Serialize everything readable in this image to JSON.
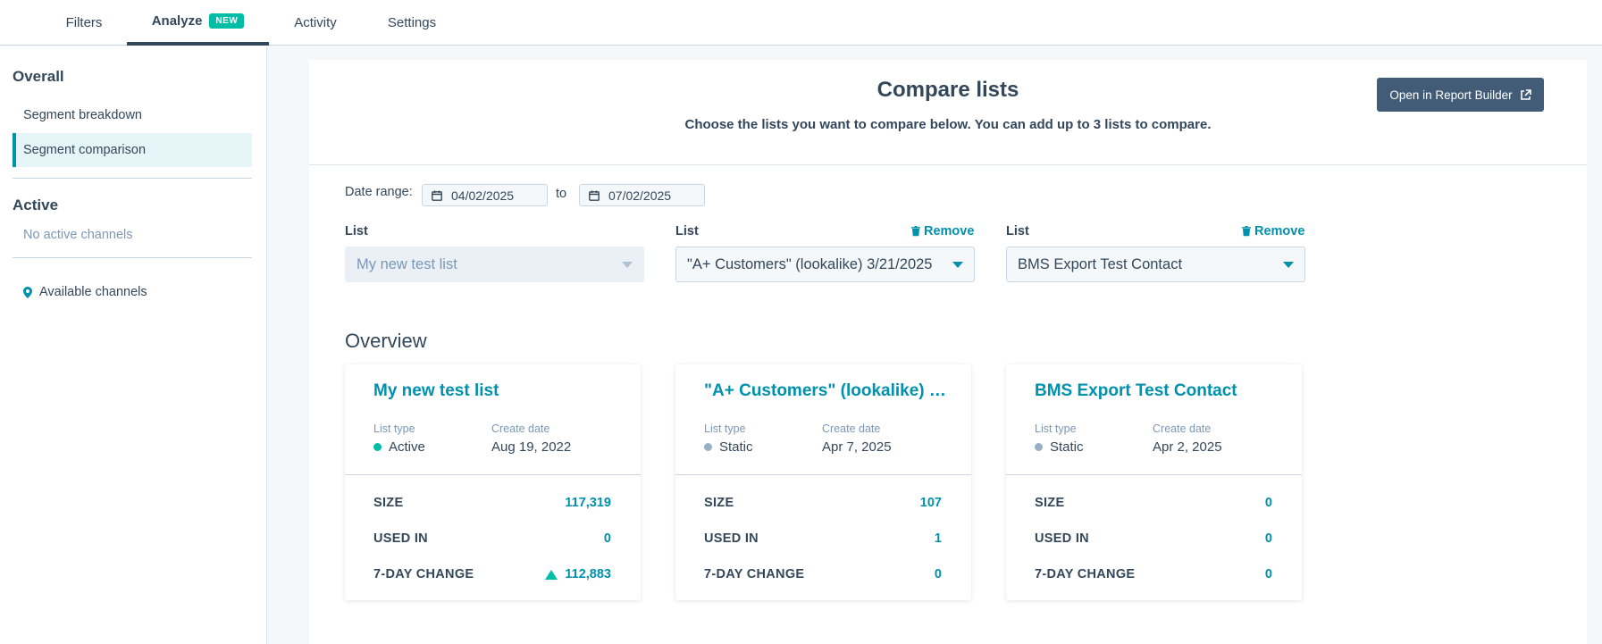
{
  "tabs": [
    {
      "label": "Filters"
    },
    {
      "label": "Analyze",
      "badge": "NEW"
    },
    {
      "label": "Activity"
    },
    {
      "label": "Settings"
    }
  ],
  "sidebar": {
    "overall_heading": "Overall",
    "items": [
      {
        "label": "Segment breakdown"
      },
      {
        "label": "Segment comparison"
      }
    ],
    "active_heading": "Active",
    "no_active": "No active channels",
    "available_link": "Available channels"
  },
  "main": {
    "title": "Compare lists",
    "subtitle": "Choose the lists you want to compare below. You can add up to 3 lists to compare.",
    "report_button": "Open in Report Builder",
    "date_range_label": "Date range:",
    "date_from": "04/02/2025",
    "date_to_label": "to",
    "date_to": "07/02/2025",
    "list_label": "List",
    "remove_label": "Remove",
    "selectors": [
      {
        "value": "My new test list"
      },
      {
        "value": "\"A+ Customers\" (lookalike) 3/21/2025"
      },
      {
        "value": "BMS Export Test Contact"
      }
    ],
    "overview_heading": "Overview",
    "meta_labels": {
      "list_type": "List type",
      "create_date": "Create date"
    },
    "stat_labels": {
      "size": "SIZE",
      "used_in": "USED IN",
      "change": "7-DAY CHANGE"
    },
    "cards": [
      {
        "title": "My new test list",
        "list_type": "Active",
        "status_color": "#00bda5",
        "create_date": "Aug 19, 2022",
        "size": "117,319",
        "used_in": "0",
        "change": "112,883"
      },
      {
        "title": "\"A+ Customers\" (lookalike) 3/21/2025",
        "list_type": "Static",
        "status_color": "#99afc4",
        "create_date": "Apr 7, 2025",
        "size": "107",
        "used_in": "1",
        "change": "0"
      },
      {
        "title": "BMS Export Test Contact",
        "list_type": "Static",
        "status_color": "#99afc4",
        "create_date": "Apr 2, 2025",
        "size": "0",
        "used_in": "0",
        "change": "0"
      }
    ]
  }
}
